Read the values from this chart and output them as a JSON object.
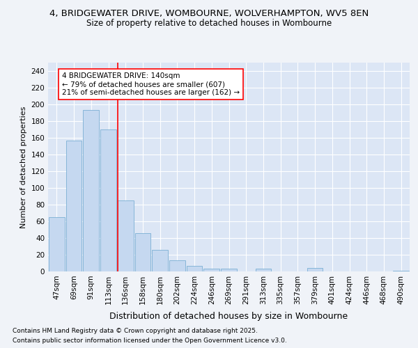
{
  "title_line1": "4, BRIDGEWATER DRIVE, WOMBOURNE, WOLVERHAMPTON, WV5 8EN",
  "title_line2": "Size of property relative to detached houses in Wombourne",
  "xlabel": "Distribution of detached houses by size in Wombourne",
  "ylabel": "Number of detached properties",
  "bar_color": "#c5d8f0",
  "bar_edge_color": "#7bafd4",
  "background_color": "#f0f3f8",
  "plot_bg_color": "#dce6f5",
  "grid_color": "#ffffff",
  "categories": [
    "47sqm",
    "69sqm",
    "91sqm",
    "113sqm",
    "136sqm",
    "158sqm",
    "180sqm",
    "202sqm",
    "224sqm",
    "246sqm",
    "269sqm",
    "291sqm",
    "313sqm",
    "335sqm",
    "357sqm",
    "379sqm",
    "401sqm",
    "424sqm",
    "446sqm",
    "468sqm",
    "490sqm"
  ],
  "values": [
    65,
    157,
    193,
    170,
    85,
    46,
    26,
    13,
    7,
    3,
    3,
    0,
    3,
    0,
    0,
    4,
    0,
    0,
    0,
    0,
    1
  ],
  "ylim": [
    0,
    250
  ],
  "yticks": [
    0,
    20,
    40,
    60,
    80,
    100,
    120,
    140,
    160,
    180,
    200,
    220,
    240
  ],
  "redline_x": 4.0,
  "annotation_text_line1": "4 BRIDGEWATER DRIVE: 140sqm",
  "annotation_text_line2": "← 79% of detached houses are smaller (607)",
  "annotation_text_line3": "21% of semi-detached houses are larger (162) →",
  "footer_line1": "Contains HM Land Registry data © Crown copyright and database right 2025.",
  "footer_line2": "Contains public sector information licensed under the Open Government Licence v3.0.",
  "title_fontsize": 9.5,
  "subtitle_fontsize": 8.5,
  "xlabel_fontsize": 9,
  "ylabel_fontsize": 8,
  "tick_fontsize": 7.5,
  "annotation_fontsize": 7.5,
  "footer_fontsize": 6.5
}
